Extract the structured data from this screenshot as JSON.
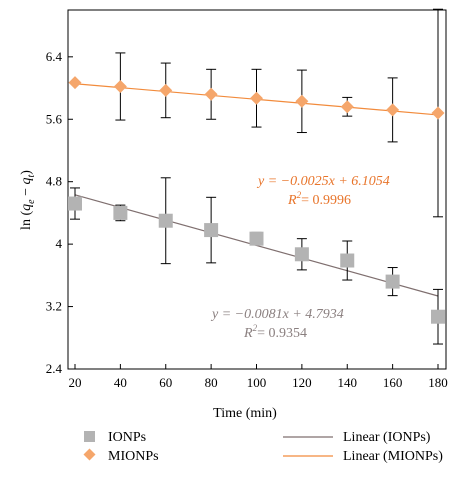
{
  "chart_data": {
    "type": "scatter",
    "xlabel": "Time (min)",
    "ylabel": "ln (q_e − q_t)",
    "xlim": [
      20,
      180
    ],
    "ylim": [
      2.4,
      7.0
    ],
    "x_ticks": [
      20,
      40,
      60,
      80,
      100,
      120,
      140,
      160,
      180
    ],
    "y_ticks": [
      2.4,
      3.2,
      4,
      4.8,
      5.6,
      6.4
    ],
    "y_tick_labels": [
      "2.4",
      "3.2",
      "4",
      "4.8",
      "5.6",
      "6.4"
    ],
    "grid": false,
    "legend_position": "bottom",
    "series": [
      {
        "name": "IONPs",
        "marker": "square",
        "color": "#b3b3b3",
        "x": [
          20,
          40,
          60,
          80,
          100,
          120,
          140,
          160,
          180
        ],
        "y": [
          4.52,
          4.4,
          4.3,
          4.18,
          4.07,
          3.87,
          3.79,
          3.52,
          3.07
        ],
        "err": [
          0.2,
          0.1,
          0.55,
          0.42,
          0.08,
          0.2,
          0.25,
          0.18,
          0.35
        ]
      },
      {
        "name": "MIONPs",
        "marker": "diamond",
        "color": "#f5a66b",
        "x": [
          20,
          40,
          60,
          80,
          100,
          120,
          140,
          160,
          180
        ],
        "y": [
          6.07,
          6.02,
          5.97,
          5.92,
          5.87,
          5.83,
          5.76,
          5.72,
          5.68
        ],
        "err": [
          0,
          0.43,
          0.35,
          0.32,
          0.37,
          0.4,
          0.12,
          0.41,
          1.33
        ]
      }
    ],
    "fits": [
      {
        "name": "Linear (IONPs)",
        "color": "#7f6f6f",
        "slope": -0.0081,
        "intercept": 4.7934,
        "equation": "y = −0.0081x + 4.7934",
        "r2_label": "R",
        "r2_value": "= 0.9354"
      },
      {
        "name": "Linear (MIONPs)",
        "color": "#f28b3c",
        "slope": -0.0025,
        "intercept": 6.1054,
        "equation": "y = −0.0025x + 6.1054",
        "r2_label": "R",
        "r2_value": "= 0.9996"
      }
    ]
  },
  "ylabel_parts": {
    "prefix": "ln (",
    "qe": "q",
    "qe_sub": "e",
    "minus": " − ",
    "qt": "q",
    "qt_sub": "t",
    "suffix": ")"
  },
  "r2_superscript": "2"
}
